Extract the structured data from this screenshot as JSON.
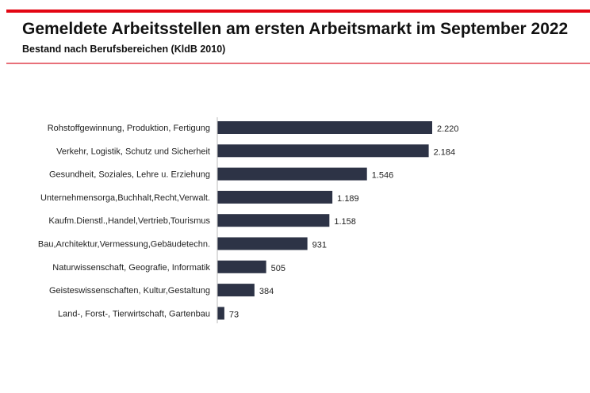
{
  "header": {
    "title": "Gemeldete Arbeitsstellen am ersten Arbeitsmarkt im September 2022",
    "subtitle": "Bestand nach Berufsbereichen (KldB 2010)"
  },
  "colors": {
    "accent": "#e30613",
    "bar": "#2d3346"
  },
  "chart_data": {
    "type": "bar",
    "orientation": "horizontal",
    "categories": [
      "Rohstoffgewinnung, Produktion, Fertigung",
      "Verkehr, Logistik, Schutz und Sicherheit",
      "Gesundheit, Soziales, Lehre u. Erziehung",
      "Unternehmensorga,Buchhalt,Recht,Verwalt.",
      "Kaufm.Dienstl.,Handel,Vertrieb,Tourismus",
      "Bau,Architektur,Vermessung,Gebäudetechn.",
      "Naturwissenschaft, Geografie, Informatik",
      "Geisteswissenschaften, Kultur,Gestaltung",
      "Land-, Forst-, Tierwirtschaft, Gartenbau"
    ],
    "values": [
      2220,
      2184,
      1546,
      1189,
      1158,
      931,
      505,
      384,
      73
    ],
    "value_labels": [
      "2.220",
      "2.184",
      "1.546",
      "1.189",
      "1.158",
      "931",
      "505",
      "384",
      "73"
    ],
    "grid": false,
    "legend": "none"
  }
}
